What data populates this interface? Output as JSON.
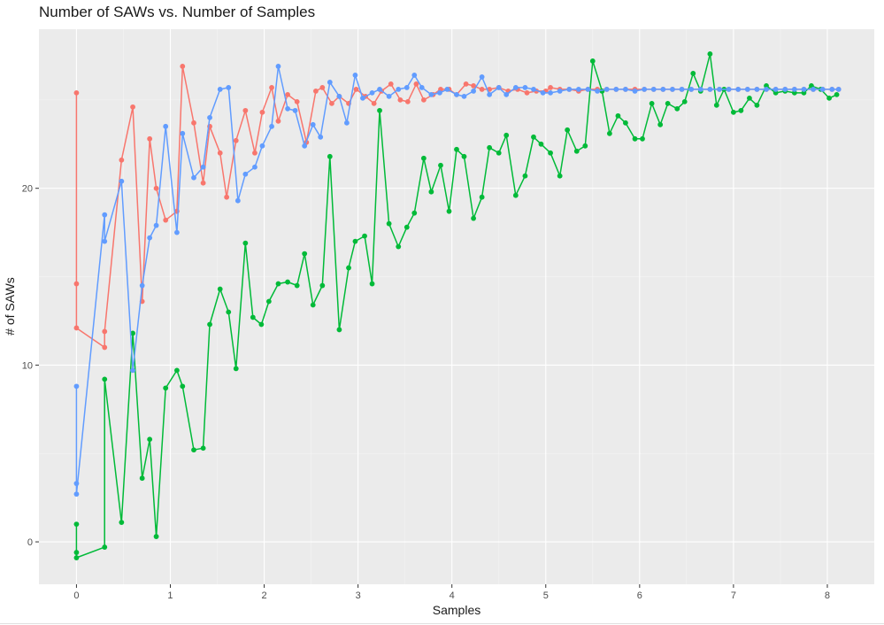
{
  "chart_data": {
    "type": "line",
    "title": "Number of SAWs vs. Number of Samples",
    "xlabel": "Samples",
    "ylabel": "# of SAWs",
    "xlim": [
      -0.4,
      8.5
    ],
    "ylim": [
      -2.4,
      29.0
    ],
    "xticks": [
      0,
      1,
      2,
      3,
      4,
      5,
      6,
      7,
      8
    ],
    "yticks": [
      0,
      10,
      20
    ],
    "grid": true,
    "legend": "none",
    "background": "#ebebeb",
    "series": [
      {
        "color": "#f8766d",
        "x": [
          0,
          0,
          0,
          0.3,
          0.3,
          0.48,
          0.6,
          0.7,
          0.78,
          0.85,
          0.95,
          1.07,
          1.13,
          1.25,
          1.35,
          1.42,
          1.53,
          1.6,
          1.7,
          1.8,
          1.9,
          1.98,
          2.08,
          2.15,
          2.25,
          2.35,
          2.45,
          2.55,
          2.62,
          2.72,
          2.8,
          2.9,
          2.98,
          3.08,
          3.17,
          3.25,
          3.35,
          3.45,
          3.53,
          3.62,
          3.7,
          3.8,
          3.88,
          3.97,
          4.05,
          4.15,
          4.23,
          4.32,
          4.4,
          4.5,
          4.6,
          4.7,
          4.8,
          4.9,
          5.0,
          5.05,
          5.15,
          5.25,
          5.35,
          5.45,
          5.55,
          5.65,
          5.75,
          5.85,
          5.95,
          6.05,
          6.15,
          6.25,
          6.35,
          6.45,
          6.55,
          6.65,
          6.75,
          6.85,
          6.95,
          7.05,
          7.15,
          7.25,
          7.35,
          7.45,
          7.55,
          7.65,
          7.75,
          7.85,
          7.95,
          8.05,
          8.12
        ],
        "y": [
          25.4,
          14.6,
          12.1,
          11.0,
          11.9,
          21.6,
          24.6,
          13.6,
          22.8,
          20.0,
          18.2,
          18.7,
          26.9,
          23.7,
          20.3,
          23.5,
          22.0,
          19.5,
          22.7,
          24.4,
          22.0,
          24.3,
          25.7,
          23.8,
          25.3,
          24.9,
          22.6,
          25.5,
          25.7,
          24.8,
          25.2,
          24.8,
          25.6,
          25.2,
          24.8,
          25.5,
          25.9,
          25.0,
          24.9,
          25.9,
          25.0,
          25.3,
          25.6,
          25.6,
          25.3,
          25.9,
          25.8,
          25.6,
          25.6,
          25.7,
          25.5,
          25.6,
          25.4,
          25.5,
          25.5,
          25.7,
          25.6,
          25.6,
          25.5,
          25.6,
          25.6,
          25.6,
          25.6,
          25.6,
          25.6,
          25.6,
          25.6,
          25.6,
          25.6,
          25.6,
          25.6,
          25.6,
          25.6,
          25.6,
          25.6,
          25.6,
          25.6,
          25.6,
          25.6,
          25.6,
          25.6,
          25.6,
          25.6,
          25.6,
          25.6,
          25.6,
          25.6
        ]
      },
      {
        "color": "#00ba38",
        "x": [
          0,
          0,
          0,
          0.3,
          0.3,
          0.48,
          0.6,
          0.7,
          0.78,
          0.85,
          0.95,
          1.07,
          1.13,
          1.25,
          1.35,
          1.42,
          1.53,
          1.62,
          1.7,
          1.8,
          1.88,
          1.97,
          2.05,
          2.15,
          2.25,
          2.35,
          2.43,
          2.52,
          2.62,
          2.7,
          2.8,
          2.9,
          2.97,
          3.07,
          3.15,
          3.23,
          3.33,
          3.43,
          3.52,
          3.6,
          3.7,
          3.78,
          3.88,
          3.97,
          4.05,
          4.13,
          4.23,
          4.32,
          4.4,
          4.5,
          4.58,
          4.68,
          4.78,
          4.87,
          4.95,
          5.05,
          5.15,
          5.23,
          5.33,
          5.42,
          5.5,
          5.6,
          5.68,
          5.77,
          5.85,
          5.95,
          6.03,
          6.13,
          6.22,
          6.3,
          6.4,
          6.48,
          6.57,
          6.65,
          6.75,
          6.82,
          6.9,
          7.0,
          7.08,
          7.17,
          7.25,
          7.35,
          7.45,
          7.55,
          7.65,
          7.75,
          7.83,
          7.93,
          8.02,
          8.1
        ],
        "y": [
          1.0,
          -0.6,
          -0.9,
          -0.3,
          9.2,
          1.1,
          11.8,
          3.6,
          5.8,
          0.3,
          8.7,
          9.7,
          8.8,
          5.2,
          5.3,
          12.3,
          14.3,
          13.0,
          9.8,
          16.9,
          12.7,
          12.3,
          13.6,
          14.6,
          14.7,
          14.5,
          16.3,
          13.4,
          14.5,
          21.8,
          12.0,
          15.5,
          17.0,
          17.3,
          14.6,
          24.4,
          18.0,
          16.7,
          17.8,
          18.6,
          21.7,
          19.8,
          21.3,
          18.7,
          22.2,
          21.8,
          18.3,
          19.5,
          22.3,
          22.0,
          23.0,
          19.6,
          20.7,
          22.9,
          22.5,
          22.0,
          20.7,
          23.3,
          22.1,
          22.4,
          27.2,
          25.5,
          23.1,
          24.1,
          23.7,
          22.8,
          22.8,
          24.8,
          23.6,
          24.8,
          24.5,
          24.9,
          26.5,
          25.5,
          27.6,
          24.7,
          25.6,
          24.3,
          24.4,
          25.1,
          24.7,
          25.8,
          25.4,
          25.5,
          25.4,
          25.4,
          25.8,
          25.6,
          25.1,
          25.3
        ]
      },
      {
        "color": "#619cff",
        "x": [
          0,
          0,
          0,
          0.3,
          0.3,
          0.48,
          0.6,
          0.7,
          0.78,
          0.85,
          0.95,
          1.07,
          1.13,
          1.25,
          1.35,
          1.42,
          1.53,
          1.62,
          1.72,
          1.8,
          1.9,
          1.98,
          2.08,
          2.15,
          2.25,
          2.33,
          2.43,
          2.52,
          2.6,
          2.7,
          2.8,
          2.88,
          2.97,
          3.05,
          3.15,
          3.23,
          3.33,
          3.43,
          3.52,
          3.6,
          3.68,
          3.78,
          3.87,
          3.95,
          4.05,
          4.13,
          4.23,
          4.32,
          4.4,
          4.5,
          4.58,
          4.68,
          4.78,
          4.87,
          4.97,
          5.05,
          5.15,
          5.25,
          5.35,
          5.45,
          5.55,
          5.65,
          5.75,
          5.85,
          5.95,
          6.05,
          6.15,
          6.25,
          6.35,
          6.45,
          6.55,
          6.65,
          6.75,
          6.85,
          6.95,
          7.05,
          7.15,
          7.25,
          7.35,
          7.45,
          7.55,
          7.65,
          7.75,
          7.85,
          7.95,
          8.05,
          8.12
        ],
        "y": [
          8.8,
          3.3,
          2.7,
          18.5,
          17.0,
          20.4,
          9.7,
          14.5,
          17.2,
          17.9,
          23.5,
          17.5,
          23.1,
          20.6,
          21.2,
          24.0,
          25.6,
          25.7,
          19.3,
          20.8,
          21.2,
          22.4,
          23.5,
          26.9,
          24.5,
          24.4,
          22.4,
          23.6,
          22.9,
          26.0,
          25.2,
          23.7,
          26.4,
          25.1,
          25.4,
          25.6,
          25.2,
          25.6,
          25.7,
          26.4,
          25.7,
          25.3,
          25.4,
          25.6,
          25.3,
          25.2,
          25.5,
          26.3,
          25.3,
          25.7,
          25.3,
          25.7,
          25.7,
          25.6,
          25.4,
          25.4,
          25.5,
          25.6,
          25.6,
          25.6,
          25.5,
          25.6,
          25.6,
          25.6,
          25.5,
          25.6,
          25.6,
          25.6,
          25.6,
          25.6,
          25.6,
          25.6,
          25.6,
          25.6,
          25.6,
          25.6,
          25.6,
          25.6,
          25.6,
          25.6,
          25.6,
          25.6,
          25.6,
          25.6,
          25.6,
          25.6,
          25.6
        ]
      }
    ]
  }
}
